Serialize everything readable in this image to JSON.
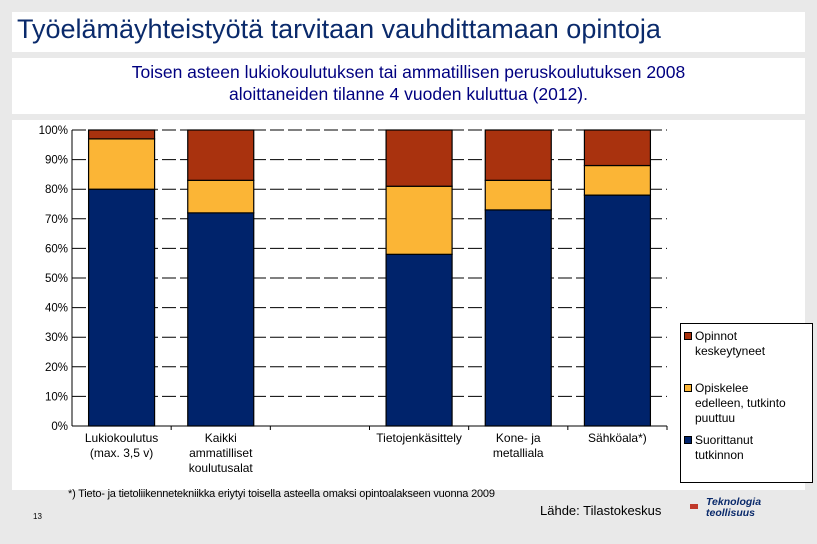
{
  "header": {
    "title": "Työelämäyhteistyötä tarvitaan vauhdittamaan opintoja",
    "subtitle_line1": "Toisen asteen lukiokoulutuksen tai ammatillisen peruskoulutuksen 2008",
    "subtitle_line2": "aloittaneiden tilanne 4 vuoden kuluttua (2012)."
  },
  "chart_data": {
    "type": "bar",
    "stacked": true,
    "categories": [
      [
        "Lukiokoulutus",
        "(max. 3,5 v)"
      ],
      [
        "Kaikki",
        "ammatilliset",
        "koulutusalat"
      ],
      [
        ""
      ],
      [
        "Tietojenkäsittely"
      ],
      [
        "Kone- ja",
        "metalliala"
      ],
      [
        "Sähköala*)"
      ]
    ],
    "series": [
      {
        "name": "Suorittanut tutkinnon",
        "color": "#00236b",
        "values": [
          80,
          72,
          0,
          58,
          73,
          78
        ]
      },
      {
        "name": "Opiskelee edelleen, tutkinto puuttuu",
        "color": "#fbb536",
        "values": [
          17,
          11,
          0,
          23,
          10,
          10
        ]
      },
      {
        "name": "Opinnot keskeytyneet",
        "color": "#a9320e",
        "values": [
          3,
          17,
          0,
          19,
          17,
          12
        ]
      }
    ],
    "ylim": [
      0,
      100
    ],
    "yticks": [
      "0%",
      "10%",
      "20%",
      "30%",
      "40%",
      "50%",
      "60%",
      "70%",
      "80%",
      "90%",
      "100%"
    ],
    "legend_position": "right"
  },
  "legend": {
    "item1_line1": "Opinnot",
    "item1_line2": "keskeytyneet",
    "item2_line1": "Opiskelee",
    "item2_line2": "edelleen, tutkinto",
    "item2_line3": "puuttuu",
    "item3_line1": "Suorittanut",
    "item3_line2": "tutkinnon"
  },
  "footer": {
    "footnote": "*) Tieto- ja tietoliikennetekniikka eriytyi toisella asteella omaksi opintoalakseen vuonna 2009",
    "slide_number": "13",
    "source": "Lähde: Tilastokeskus",
    "logo_line1": "Teknologia",
    "logo_line2": "teollisuus"
  },
  "colors": {
    "title": "#0a2a6b",
    "subtitle": "#000080",
    "completed": "#00236b",
    "studying": "#fbb536",
    "dropped": "#a9320e"
  }
}
